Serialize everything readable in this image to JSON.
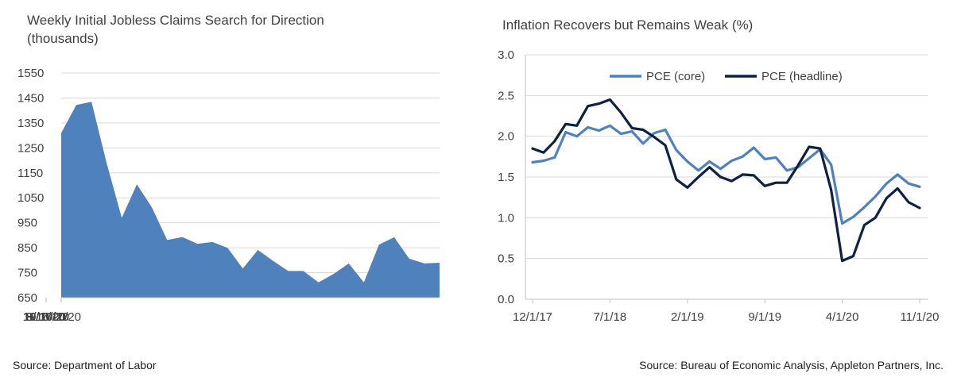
{
  "chart_data": [
    {
      "type": "area",
      "title": "Weekly Initial Jobless Claims Search for Direction (thousands)",
      "x": [
        "7/10/20",
        "7/17/20",
        "7/24/20",
        "7/31/20",
        "8/7/20",
        "8/14/20",
        "8/21/20",
        "8/28/20",
        "9/4/20",
        "9/11/20",
        "9/18/20",
        "9/25/20",
        "10/2/20",
        "10/9/20",
        "10/16/20",
        "10/23/20",
        "10/30/20",
        "11/6/20",
        "11/13/20",
        "11/20/20",
        "11/27/20",
        "12/4/20",
        "12/11/20",
        "12/18/20",
        "12/25/20",
        "1/1/21"
      ],
      "values": [
        1310,
        1422,
        1435,
        1190,
        970,
        1104,
        1011,
        881,
        893,
        866,
        873,
        849,
        767,
        841,
        797,
        757,
        757,
        711,
        745,
        787,
        711,
        862,
        892,
        806,
        787,
        790
      ],
      "xticks": [
        "7/10/20",
        "8/10/20",
        "9/10/20",
        "10/10/20",
        "11/10/20",
        "12/10/20"
      ],
      "yticks": [
        "650",
        "750",
        "850",
        "950",
        "1050",
        "1150",
        "1250",
        "1350",
        "1450",
        "1550"
      ],
      "ylim": [
        650,
        1550
      ],
      "grid": true,
      "color": "#4f81bd",
      "source": "Source: Department of Labor"
    },
    {
      "type": "line",
      "title": "Inflation Recovers but Remains Weak (%)",
      "x": [
        "12/1/17",
        "1/1/18",
        "2/1/18",
        "3/1/18",
        "4/1/18",
        "5/1/18",
        "6/1/18",
        "7/1/18",
        "8/1/18",
        "9/1/18",
        "10/1/18",
        "11/1/18",
        "12/1/18",
        "1/1/19",
        "2/1/19",
        "3/1/19",
        "4/1/19",
        "5/1/19",
        "6/1/19",
        "7/1/19",
        "8/1/19",
        "9/1/19",
        "10/1/19",
        "11/1/19",
        "12/1/19",
        "1/1/20",
        "2/1/20",
        "3/1/20",
        "4/1/20",
        "5/1/20",
        "6/1/20",
        "7/1/20",
        "8/1/20",
        "9/1/20",
        "10/1/20",
        "11/1/20"
      ],
      "series": [
        {
          "name": "PCE (core)",
          "color": "#4f81bd",
          "values": [
            1.68,
            1.7,
            1.74,
            2.05,
            2.0,
            2.11,
            2.07,
            2.13,
            2.03,
            2.06,
            1.91,
            2.04,
            2.08,
            1.83,
            1.69,
            1.58,
            1.69,
            1.6,
            1.7,
            1.75,
            1.86,
            1.72,
            1.74,
            1.58,
            1.62,
            1.73,
            1.84,
            1.65,
            0.93,
            1.01,
            1.13,
            1.26,
            1.42,
            1.53,
            1.42,
            1.38
          ]
        },
        {
          "name": "PCE (headline)",
          "color": "#0c2244",
          "values": [
            1.85,
            1.8,
            1.94,
            2.15,
            2.13,
            2.37,
            2.4,
            2.45,
            2.29,
            2.1,
            2.08,
            1.99,
            1.89,
            1.47,
            1.37,
            1.5,
            1.62,
            1.5,
            1.45,
            1.53,
            1.52,
            1.39,
            1.43,
            1.43,
            1.64,
            1.87,
            1.85,
            1.34,
            0.47,
            0.53,
            0.91,
            1.0,
            1.24,
            1.36,
            1.19,
            1.12
          ]
        }
      ],
      "xticks": [
        "12/1/17",
        "7/1/18",
        "2/1/19",
        "9/1/19",
        "4/1/20",
        "11/1/20"
      ],
      "yticks": [
        "0.0",
        "0.5",
        "1.0",
        "1.5",
        "2.0",
        "2.5",
        "3.0"
      ],
      "ylim": [
        0,
        3.0
      ],
      "grid": true,
      "legend": "top-center",
      "source": "Source: Bureau of Economic Analysis, Appleton Partners, Inc."
    }
  ]
}
